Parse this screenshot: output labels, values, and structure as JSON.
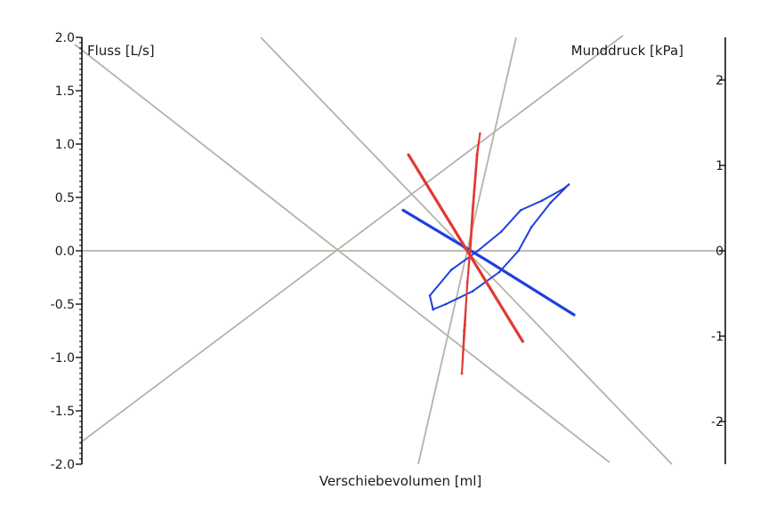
{
  "chart_data": {
    "type": "line",
    "left_axis": {
      "label": "Fluss [L/s]",
      "range": [
        -2.0,
        2.0
      ],
      "tick_labels": [
        "2.0",
        "1.5",
        "1.0",
        "0.5",
        "0.0",
        "-0.5",
        "-1.0",
        "-1.5",
        "-2.0"
      ]
    },
    "right_axis": {
      "label": "Munddruck [kPa]",
      "range": [
        -2.5,
        2.5
      ],
      "tick_labels": [
        "2",
        "1",
        "0",
        "-1",
        "-2"
      ]
    },
    "x_axis": {
      "label": "Verschiebevolumen [ml]"
    },
    "colors": {
      "flow_loop": "#1f3fe0",
      "pressure_loop": "#e03a32",
      "reference_lines": "#b5b2aa",
      "axes": "#000000"
    },
    "grid": false,
    "series": [
      {
        "color": "#1f3fe0",
        "values": [
          [
            -0.32,
            -0.55
          ],
          [
            -0.2,
            -0.5
          ],
          [
            0.05,
            -0.38
          ],
          [
            0.3,
            -0.2
          ],
          [
            0.48,
            0.0
          ],
          [
            0.6,
            0.22
          ],
          [
            0.78,
            0.45
          ],
          [
            0.95,
            0.62
          ],
          [
            0.9,
            0.58
          ],
          [
            0.7,
            0.47
          ],
          [
            0.5,
            0.38
          ],
          [
            0.32,
            0.18
          ],
          [
            0.1,
            0.0
          ],
          [
            -0.15,
            -0.18
          ],
          [
            -0.35,
            -0.42
          ],
          [
            -0.32,
            -0.55
          ]
        ]
      },
      {
        "color": "#1f3fe0",
        "values": [
          [
            -0.6,
            0.38
          ],
          [
            0.2,
            -0.1
          ],
          [
            1.0,
            -0.6
          ]
        ]
      },
      {
        "color": "#e03a32",
        "values": [
          [
            -0.05,
            -1.15
          ],
          [
            -0.02,
            -0.7
          ],
          [
            0.0,
            -0.3
          ],
          [
            0.03,
            0.0
          ],
          [
            0.06,
            0.45
          ],
          [
            0.1,
            0.95
          ],
          [
            0.12,
            1.1
          ],
          [
            0.09,
            0.9
          ],
          [
            0.05,
            0.4
          ],
          [
            0.01,
            -0.2
          ],
          [
            -0.03,
            -0.75
          ],
          [
            -0.05,
            -1.15
          ]
        ]
      },
      {
        "color": "#e03a32",
        "values": [
          [
            -0.55,
            0.9
          ],
          [
            0.0,
            0.0
          ],
          [
            0.52,
            -0.85
          ]
        ]
      }
    ]
  }
}
